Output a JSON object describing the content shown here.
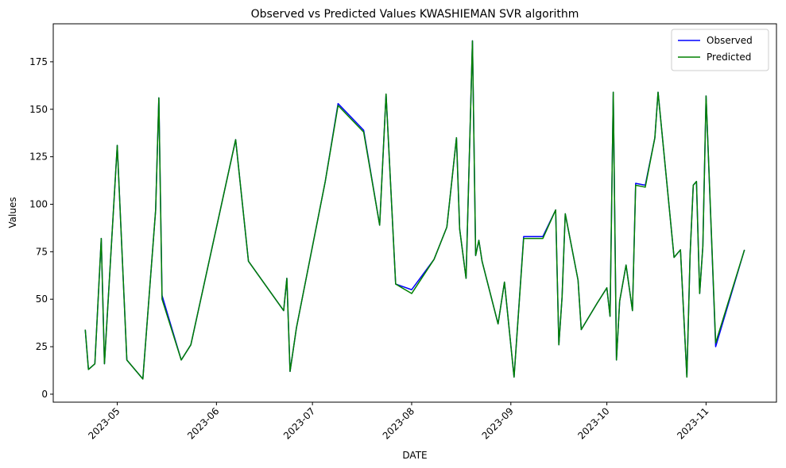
{
  "chart_data": {
    "type": "line",
    "title": "Observed vs Predicted Values KWASHIEMAN SVR algorithm",
    "xlabel": "DATE",
    "ylabel": "Values",
    "x": [
      "2023-04-21",
      "2023-04-22",
      "2023-04-24",
      "2023-04-26",
      "2023-04-27",
      "2023-05-01",
      "2023-05-04",
      "2023-05-09",
      "2023-05-13",
      "2023-05-14",
      "2023-05-15",
      "2023-05-21",
      "2023-05-24",
      "2023-06-07",
      "2023-06-11",
      "2023-06-22",
      "2023-06-23",
      "2023-06-24",
      "2023-06-26",
      "2023-07-05",
      "2023-07-09",
      "2023-07-17",
      "2023-07-22",
      "2023-07-24",
      "2023-07-27",
      "2023-08-01",
      "2023-08-08",
      "2023-08-12",
      "2023-08-15",
      "2023-08-16",
      "2023-08-18",
      "2023-08-20",
      "2023-08-21",
      "2023-08-22",
      "2023-08-23",
      "2023-08-28",
      "2023-08-30",
      "2023-09-02",
      "2023-09-05",
      "2023-09-11",
      "2023-09-15",
      "2023-09-16",
      "2023-09-17",
      "2023-09-18",
      "2023-09-22",
      "2023-09-23",
      "2023-09-28",
      "2023-10-01",
      "2023-10-02",
      "2023-10-03",
      "2023-10-04",
      "2023-10-05",
      "2023-10-07",
      "2023-10-09",
      "2023-10-10",
      "2023-10-13",
      "2023-10-16",
      "2023-10-17",
      "2023-10-22",
      "2023-10-24",
      "2023-10-26",
      "2023-10-27",
      "2023-10-28",
      "2023-10-29",
      "2023-10-30",
      "2023-10-31",
      "2023-11-01",
      "2023-11-04",
      "2023-11-13"
    ],
    "series": [
      {
        "name": "Observed",
        "color": "#0000ff",
        "values": [
          34,
          13,
          16,
          82,
          16,
          131,
          18,
          8,
          97,
          156,
          52,
          18,
          26,
          134,
          70,
          44,
          61,
          12,
          35,
          112,
          153,
          139,
          89,
          158,
          58,
          55,
          71,
          88,
          135,
          87,
          61,
          186,
          73,
          81,
          70,
          37,
          59,
          9,
          83,
          83,
          97,
          26,
          51,
          95,
          60,
          34,
          48,
          56,
          41,
          159,
          18,
          49,
          68,
          44,
          111,
          110,
          135,
          159,
          72,
          76,
          9,
          73,
          110,
          112,
          53,
          78,
          157,
          25,
          76
        ]
      },
      {
        "name": "Predicted",
        "color": "#008000",
        "values": [
          34,
          13,
          16,
          82,
          16,
          131,
          18,
          8,
          97,
          156,
          50,
          18,
          26,
          134,
          70,
          44,
          61,
          12,
          35,
          112,
          152,
          138,
          89,
          158,
          58,
          53,
          71,
          88,
          135,
          87,
          61,
          186,
          73,
          81,
          70,
          37,
          59,
          9,
          82,
          82,
          97,
          26,
          51,
          95,
          60,
          34,
          48,
          56,
          41,
          159,
          18,
          49,
          68,
          44,
          110,
          109,
          135,
          159,
          72,
          76,
          9,
          73,
          110,
          112,
          53,
          78,
          157,
          27,
          76
        ]
      }
    ],
    "xlim": [
      "2023-04-11",
      "2023-11-23"
    ],
    "xticks": [
      {
        "value": "2023-05-01",
        "label": "2023-05"
      },
      {
        "value": "2023-06-01",
        "label": "2023-06"
      },
      {
        "value": "2023-07-01",
        "label": "2023-07"
      },
      {
        "value": "2023-08-01",
        "label": "2023-08"
      },
      {
        "value": "2023-09-01",
        "label": "2023-09"
      },
      {
        "value": "2023-10-01",
        "label": "2023-10"
      },
      {
        "value": "2023-11-01",
        "label": "2023-11"
      }
    ],
    "ylim": [
      -4.2,
      195
    ],
    "yticks": [
      0,
      25,
      50,
      75,
      100,
      125,
      150,
      175
    ],
    "legend": "upper right",
    "grid": false
  }
}
